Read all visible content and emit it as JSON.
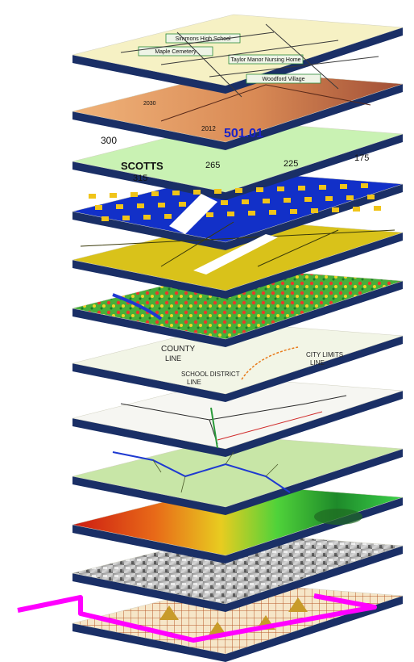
{
  "figure": {
    "layers": [
      {
        "id": "street-map",
        "labels": [
          "Simmons High School",
          "Maple Cemetery",
          "Taylor Manor Nursing Home",
          "Woodford Village"
        ]
      },
      {
        "id": "census-tracts",
        "labels": [
          "2030",
          "2012",
          "501.01"
        ]
      },
      {
        "id": "parcels",
        "labels": [
          "SCOTTS",
          "300",
          "265",
          "225",
          "175",
          "315"
        ]
      },
      {
        "id": "building-footprints",
        "labels": []
      },
      {
        "id": "zoning",
        "labels": []
      },
      {
        "id": "land-cover",
        "labels": []
      },
      {
        "id": "boundaries",
        "labels": [
          "COUNTY",
          "LINE",
          "SCHOOL DISTRICT",
          "LINE",
          "CITY LIMITS",
          "LINE"
        ]
      },
      {
        "id": "roads",
        "labels": []
      },
      {
        "id": "hydrology",
        "labels": []
      },
      {
        "id": "elevation",
        "labels": []
      },
      {
        "id": "aerial-photo",
        "labels": []
      },
      {
        "id": "survey-grid",
        "labels": []
      }
    ],
    "colors": {
      "edge": "#1a2f66",
      "street_bg": "#f6f1c4",
      "tract_left": "#e7a86c",
      "tract_right": "#b05a3a",
      "parcel": "#c9f2b3",
      "building_blue": "#1230c8",
      "building_yellow": "#f0c419",
      "zoning": "#d9c21a",
      "hydro": "#c8e6a7",
      "stream": "#1f3ad1",
      "outline": "#ff00ff",
      "grid_bg": "#f6e6c8",
      "grid_line": "#b85a2a",
      "triangle": "#c89b2a"
    }
  }
}
